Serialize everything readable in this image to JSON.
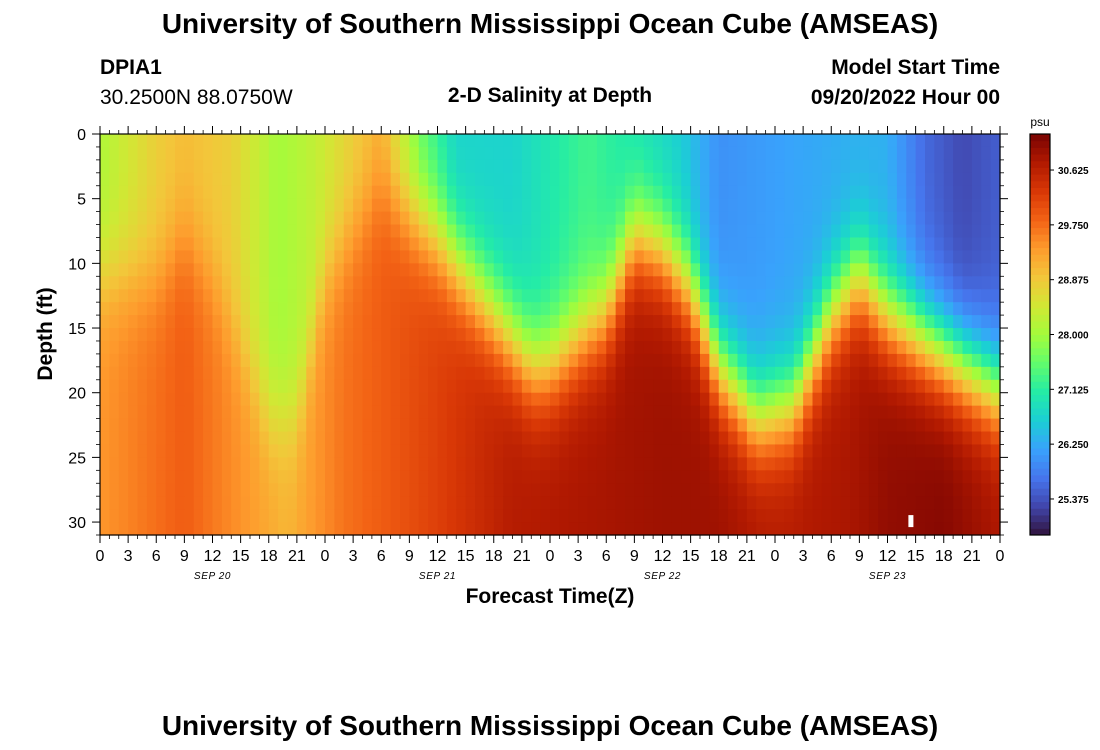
{
  "header": {
    "title": "University of Southern Mississippi Ocean Cube (AMSEAS)",
    "station": "DPIA1",
    "coords": "30.2500N  88.0750W",
    "chart_title": "2-D Salinity at Depth",
    "model_start_label": "Model Start Time",
    "model_start_value": "09/20/2022 Hour 00"
  },
  "footer": {
    "title": "University of Southern Mississippi Ocean Cube (AMSEAS)"
  },
  "colors": {
    "scale": [
      "#30123b",
      "#4145ab",
      "#4675ed",
      "#39a2fc",
      "#1bcfd4",
      "#24eca6",
      "#61fc6c",
      "#a4fc3b",
      "#d1e834",
      "#f3c63a",
      "#fe9b2d",
      "#f36315",
      "#d93806",
      "#b11901",
      "#7a0402"
    ]
  },
  "chart_data": {
    "type": "heatmap",
    "title": "2-D Salinity at Depth",
    "xlabel": "Forecast Time(Z)",
    "ylabel": "Depth (ft)",
    "x_tick_labels": [
      "0",
      "3",
      "6",
      "9",
      "12",
      "15",
      "18",
      "21",
      "0",
      "3",
      "6",
      "9",
      "12",
      "15",
      "18",
      "21",
      "0",
      "3",
      "6",
      "9",
      "12",
      "15",
      "18",
      "21",
      "0",
      "3",
      "6",
      "9",
      "12",
      "15",
      "18",
      "21",
      "0"
    ],
    "x_range_hours": [
      0,
      96
    ],
    "date_labels": [
      {
        "text": "SEP 20",
        "hour": 12
      },
      {
        "text": "SEP 21",
        "hour": 36
      },
      {
        "text": "SEP 22",
        "hour": 60
      },
      {
        "text": "SEP 23",
        "hour": 84
      }
    ],
    "y_ticks": [
      0,
      5,
      10,
      15,
      20,
      25,
      30
    ],
    "y_tick_labels": [
      "0",
      "5",
      "10",
      "15",
      "20",
      "25",
      "30"
    ],
    "ylim": [
      0,
      31
    ],
    "colorbar": {
      "unit": "psu",
      "range": [
        24.8,
        31.2
      ],
      "ticks": [
        30.625,
        29.75,
        28.875,
        28.0,
        27.125,
        26.25,
        25.375
      ],
      "tick_labels": [
        "30.625",
        "29.750",
        "28.875",
        "28.000",
        "27.125",
        "26.250",
        "25.375"
      ]
    },
    "surface_salinity_by_hour": [
      [
        0,
        28.1
      ],
      [
        6,
        28.8
      ],
      [
        9,
        29.0
      ],
      [
        14,
        28.8
      ],
      [
        19,
        28.0
      ],
      [
        23,
        28.3
      ],
      [
        27,
        28.8
      ],
      [
        30,
        29.1
      ],
      [
        34,
        27.6
      ],
      [
        38,
        26.7
      ],
      [
        44,
        26.7
      ],
      [
        52,
        27.3
      ],
      [
        58,
        26.9
      ],
      [
        62,
        26.6
      ],
      [
        66,
        26.0
      ],
      [
        74,
        26.2
      ],
      [
        80,
        26.3
      ],
      [
        84,
        26.3
      ],
      [
        88,
        25.6
      ],
      [
        92,
        25.3
      ],
      [
        96,
        25.5
      ]
    ],
    "bottom_salinity_by_hour": [
      [
        0,
        29.4
      ],
      [
        9,
        29.9
      ],
      [
        14,
        29.5
      ],
      [
        20,
        29.1
      ],
      [
        26,
        29.7
      ],
      [
        36,
        30.2
      ],
      [
        44,
        30.7
      ],
      [
        52,
        30.8
      ],
      [
        60,
        30.9
      ],
      [
        66,
        30.9
      ],
      [
        72,
        30.7
      ],
      [
        80,
        30.8
      ],
      [
        84,
        31.0
      ],
      [
        90,
        31.1
      ],
      [
        96,
        30.8
      ]
    ],
    "halocline_depth_ft_by_hour": [
      [
        0,
        11
      ],
      [
        6,
        11
      ],
      [
        9,
        8
      ],
      [
        12,
        11
      ],
      [
        18,
        22
      ],
      [
        21,
        22
      ],
      [
        24,
        11
      ],
      [
        30,
        4
      ],
      [
        36,
        8
      ],
      [
        42,
        14
      ],
      [
        46,
        18
      ],
      [
        48,
        18
      ],
      [
        54,
        14
      ],
      [
        57,
        8
      ],
      [
        60,
        9
      ],
      [
        63,
        12
      ],
      [
        66,
        18
      ],
      [
        70,
        22
      ],
      [
        74,
        21
      ],
      [
        78,
        14
      ],
      [
        81,
        11
      ],
      [
        84,
        14
      ],
      [
        88,
        16
      ],
      [
        90,
        17
      ],
      [
        96,
        20
      ]
    ],
    "marker": {
      "hour": 86.5,
      "depth_ft": 30
    }
  }
}
